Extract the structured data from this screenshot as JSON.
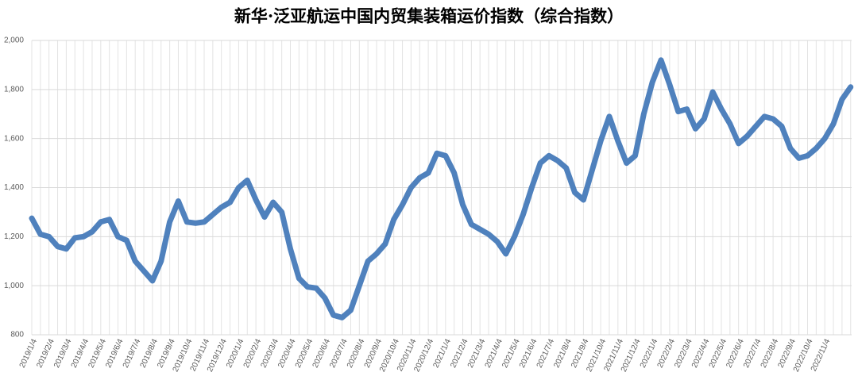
{
  "chart_data": {
    "type": "line",
    "title": "新华·泛亚航运中国内贸集装箱运价指数（综合指数）",
    "categories": [
      "2019/1/4",
      null,
      "2019/2/4",
      null,
      "2019/3/4",
      null,
      "2019/4/4",
      null,
      "2019/5/4",
      null,
      "2019/6/4",
      null,
      "2019/7/4",
      null,
      "2019/8/4",
      null,
      "2019/9/4",
      null,
      "2019/10/4",
      null,
      "2019/11/4",
      null,
      "2019/12/4",
      null,
      "2020/1/4",
      null,
      "2020/2/4",
      null,
      "2020/3/4",
      null,
      "2020/4/4",
      null,
      "2020/5/4",
      null,
      "2020/6/4",
      null,
      "2020/7/4",
      null,
      "2020/8/4",
      null,
      "2020/9/4",
      null,
      "2020/10/4",
      null,
      "2020/11/4",
      null,
      "2020/12/4",
      null,
      "2021/1/4",
      null,
      "2021/2/4",
      null,
      "2021/3/4",
      null,
      "2021/4/4",
      null,
      "2021/5/4",
      null,
      "2021/6/4",
      null,
      "2021/7/4",
      null,
      "2021/8/4",
      null,
      "2021/9/4",
      null,
      "2021/10/4",
      null,
      "2021/11/4",
      null,
      "2021/12/4",
      null,
      "2022/1/4",
      null,
      "2022/2/4",
      null,
      "2022/3/4",
      null,
      "2022/4/4",
      null,
      "2022/5/4",
      null,
      "2022/6/4",
      null,
      "2022/7/4",
      null,
      "2022/8/4",
      null,
      "2022/9/4",
      null,
      "2022/10/4",
      null,
      "2022/11/4",
      null,
      null,
      null
    ],
    "series": [
      {
        "name": "综合指数",
        "color": "#4f81bd",
        "values": [
          1275,
          1210,
          1200,
          1160,
          1150,
          1195,
          1200,
          1220,
          1260,
          1270,
          1200,
          1185,
          1100,
          1060,
          1020,
          1100,
          1260,
          1345,
          1260,
          1255,
          1260,
          1290,
          1320,
          1340,
          1400,
          1430,
          1350,
          1280,
          1340,
          1300,
          1150,
          1030,
          995,
          990,
          950,
          880,
          870,
          900,
          1000,
          1100,
          1130,
          1170,
          1270,
          1330,
          1400,
          1440,
          1460,
          1540,
          1530,
          1460,
          1330,
          1250,
          1230,
          1210,
          1180,
          1130,
          1200,
          1290,
          1400,
          1500,
          1530,
          1510,
          1480,
          1380,
          1350,
          1470,
          1590,
          1690,
          1590,
          1500,
          1530,
          1700,
          1830,
          1920,
          1820,
          1710,
          1720,
          1640,
          1680,
          1790,
          1720,
          1660,
          1580,
          1610,
          1650,
          1690,
          1680,
          1650,
          1560,
          1520,
          1530,
          1560,
          1600,
          1660,
          1760,
          1810
        ]
      }
    ],
    "ylim": [
      800,
      2000
    ],
    "yticks": [
      800,
      {
        "value": 1000,
        "label": "1,000"
      },
      {
        "value": 1200,
        "label": "1,200"
      },
      {
        "value": 1400,
        "label": "1,400"
      },
      {
        "value": 1600,
        "label": "1,600"
      },
      {
        "value": 1800,
        "label": "1,800"
      },
      {
        "value": 2000,
        "label": "2,000"
      }
    ],
    "grid": true
  }
}
